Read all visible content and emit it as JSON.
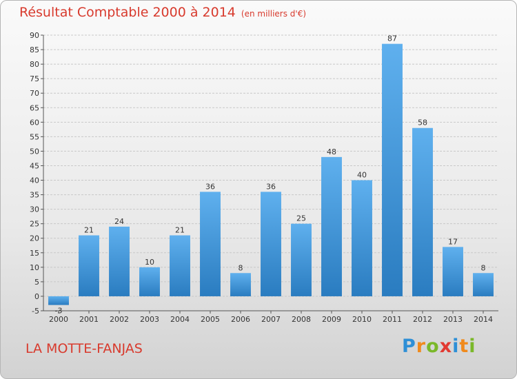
{
  "colors": {
    "title": "#d83a2d",
    "bar_light": "#5fb0ee",
    "bar_dark": "#2a7cc0",
    "grid": "#c8c8c8",
    "axis": "#555555"
  },
  "chart_data": {
    "type": "bar",
    "title": "Résultat Comptable 2000 à 2014",
    "subtitle": "(en milliers d'€)",
    "xlabel": "",
    "ylabel": "",
    "categories": [
      "2000",
      "2001",
      "2002",
      "2003",
      "2004",
      "2005",
      "2006",
      "2007",
      "2008",
      "2009",
      "2010",
      "2011",
      "2012",
      "2013",
      "2014"
    ],
    "values": [
      -3,
      21,
      24,
      10,
      21,
      36,
      8,
      36,
      25,
      48,
      40,
      87,
      58,
      17,
      8
    ],
    "value_labels": [
      "-3",
      "21",
      "24",
      "10",
      "21",
      "36",
      "8",
      "36",
      "25",
      "48",
      "40",
      "87",
      "58",
      "17",
      "8"
    ],
    "ylim": [
      -5,
      90
    ],
    "yticks": [
      -5,
      0,
      5,
      10,
      15,
      20,
      25,
      30,
      35,
      40,
      45,
      50,
      55,
      60,
      65,
      70,
      75,
      80,
      85,
      90
    ],
    "grid": true
  },
  "footer": {
    "town": "LA MOTTE-FANJAS",
    "logo_letters": [
      {
        "ch": "P",
        "color": "#2e8fd6"
      },
      {
        "ch": "r",
        "color": "#f08a1c"
      },
      {
        "ch": "o",
        "color": "#7ab829"
      },
      {
        "ch": "x",
        "color": "#e23a32"
      },
      {
        "ch": "i",
        "color": "#2e8fd6"
      },
      {
        "ch": "t",
        "color": "#f08a1c"
      },
      {
        "ch": "i",
        "color": "#7ab829"
      }
    ]
  }
}
